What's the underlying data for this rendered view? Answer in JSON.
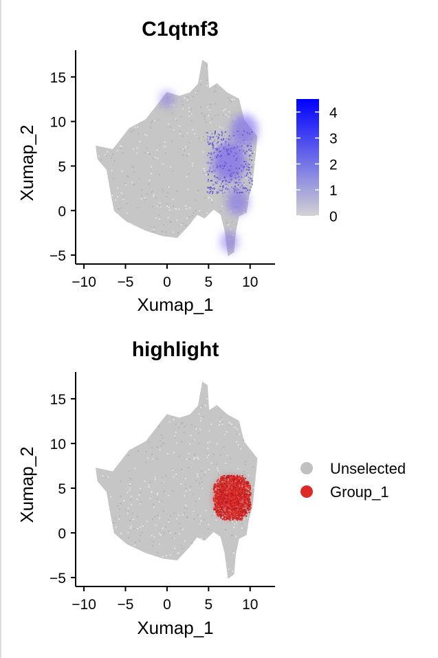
{
  "chart_data": [
    {
      "type": "scatter",
      "title": "C1qtnf3",
      "xlabel": "Xumap_1",
      "ylabel": "Xumap_2",
      "xlim": [
        -11,
        13
      ],
      "ylim": [
        -6,
        18
      ],
      "xticks": [
        -10,
        -5,
        0,
        5,
        10
      ],
      "yticks": [
        -5,
        0,
        5,
        10,
        15
      ],
      "grid": false,
      "legend": {
        "kind": "colorbar",
        "placement": "right",
        "min": 0,
        "max": 4.5,
        "ticks": [
          0,
          1,
          2,
          3,
          4
        ],
        "low_color": "#d3d3d3",
        "high_color": "#0000ff"
      },
      "expression_hotspots": [
        {
          "x": 7.5,
          "y": 5.5,
          "level": 2.2
        },
        {
          "x": 9.3,
          "y": 9.0,
          "level": 1.8
        },
        {
          "x": 8.5,
          "y": 1.0,
          "level": 1.5
        },
        {
          "x": 7.5,
          "y": -3.5,
          "level": 1.2
        },
        {
          "x": 0.0,
          "y": 12.5,
          "level": 1.0
        }
      ]
    },
    {
      "type": "scatter",
      "title": "highlight",
      "xlabel": "Xumap_1",
      "ylabel": "Xumap_2",
      "xlim": [
        -11,
        13
      ],
      "ylim": [
        -6,
        18
      ],
      "xticks": [
        -10,
        -5,
        0,
        5,
        10
      ],
      "yticks": [
        -5,
        0,
        5,
        10,
        15
      ],
      "grid": false,
      "legend": {
        "kind": "categorical",
        "placement": "right",
        "entries": [
          {
            "label": "Unselected",
            "color": "#c0c0c0"
          },
          {
            "label": "Group_1",
            "color": "#dc2a26"
          }
        ]
      },
      "highlight_region": {
        "x": [
          5.5,
          10.0
        ],
        "y": [
          1.5,
          6.5
        ]
      }
    }
  ]
}
